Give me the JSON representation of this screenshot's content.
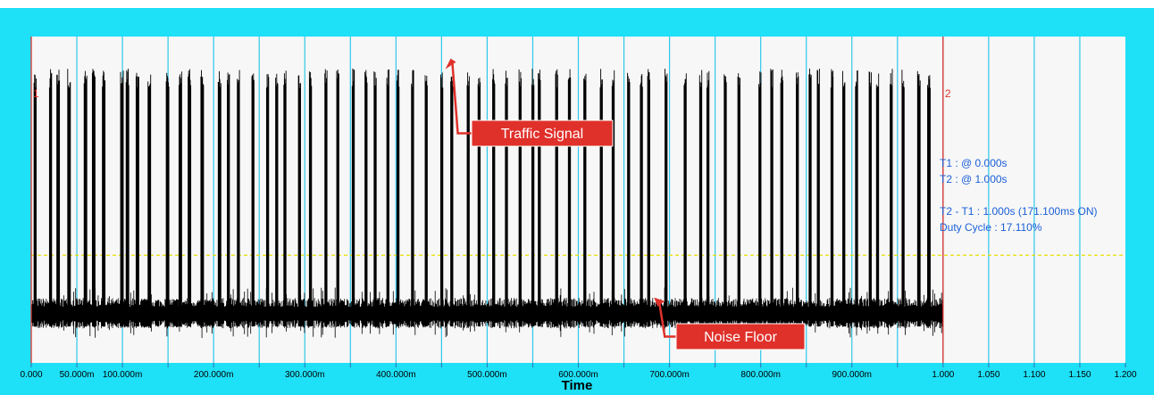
{
  "chart_data": {
    "type": "line",
    "title": "",
    "xlabel": "Time",
    "ylabel": "",
    "xlim": [
      0,
      1.2
    ],
    "x_ticks": [
      {
        "value": 0.0,
        "label": "0.000"
      },
      {
        "value": 0.05,
        "label": "50.000m"
      },
      {
        "value": 0.1,
        "label": "100.000m"
      },
      {
        "value": 0.15,
        "label": ""
      },
      {
        "value": 0.2,
        "label": "200.000m"
      },
      {
        "value": 0.25,
        "label": ""
      },
      {
        "value": 0.3,
        "label": "300.000m"
      },
      {
        "value": 0.35,
        "label": ""
      },
      {
        "value": 0.4,
        "label": "400.000m"
      },
      {
        "value": 0.45,
        "label": ""
      },
      {
        "value": 0.5,
        "label": "500.000m"
      },
      {
        "value": 0.55,
        "label": ""
      },
      {
        "value": 0.6,
        "label": "600.000m"
      },
      {
        "value": 0.65,
        "label": ""
      },
      {
        "value": 0.7,
        "label": "700.000m"
      },
      {
        "value": 0.75,
        "label": ""
      },
      {
        "value": 0.8,
        "label": "800.000m"
      },
      {
        "value": 0.85,
        "label": ""
      },
      {
        "value": 0.9,
        "label": "900.000m"
      },
      {
        "value": 0.95,
        "label": ""
      },
      {
        "value": 1.0,
        "label": "1.000"
      },
      {
        "value": 1.05,
        "label": "1.050"
      },
      {
        "value": 1.1,
        "label": "1.100"
      },
      {
        "value": 1.15,
        "label": "1.150"
      },
      {
        "value": 1.2,
        "label": "1.200"
      }
    ],
    "grid": true,
    "signal_end": 1.0,
    "signal_level": 0.88,
    "noise_level": 0.15,
    "threshold_level": 0.33,
    "bursts": [
      0.003,
      0.02,
      0.028,
      0.04,
      0.058,
      0.067,
      0.078,
      0.098,
      0.104,
      0.115,
      0.128,
      0.148,
      0.162,
      0.172,
      0.186,
      0.205,
      0.215,
      0.226,
      0.242,
      0.258,
      0.268,
      0.277,
      0.293,
      0.305,
      0.322,
      0.335,
      0.352,
      0.366,
      0.376,
      0.39,
      0.401,
      0.417,
      0.432,
      0.449,
      0.46,
      0.478,
      0.49,
      0.506,
      0.52,
      0.535,
      0.549,
      0.556,
      0.575,
      0.589,
      0.606,
      0.624,
      0.637,
      0.654,
      0.668,
      0.676,
      0.695,
      0.716,
      0.733,
      0.741,
      0.76,
      0.775,
      0.798,
      0.811,
      0.822,
      0.839,
      0.853,
      0.862,
      0.877,
      0.89,
      0.904,
      0.919,
      0.927,
      0.942,
      0.955,
      0.972,
      0.983
    ],
    "burst_width": 0.0028,
    "cursors": [
      {
        "name": "T1",
        "x": 0.0,
        "label": "1"
      },
      {
        "name": "T2",
        "x": 1.0,
        "label": "2"
      }
    ],
    "measurements": {
      "t1": "T1 : @ 0.000s",
      "t2": "T2 : @ 1.000s",
      "delta": "T2 - T1 : 1.000s (171.100ms ON)",
      "duty": "Duty Cycle : 17.110%"
    },
    "annotations": [
      {
        "text": "Traffic Signal",
        "target_x": 0.458,
        "target_y": 0.9
      },
      {
        "text": "Noise Floor",
        "target_x": 0.683,
        "target_y": 0.2
      }
    ]
  },
  "colors": {
    "frame": "#1ee0f7",
    "plot_bg": "#f7f7f7",
    "grid": "#2fc8ea",
    "signal": "#000000",
    "cursor": "#e0302a",
    "threshold": "#e8e000",
    "measure_text": "#1a5fd8",
    "callout_bg": "#e0302a",
    "callout_text": "#ffffff"
  }
}
